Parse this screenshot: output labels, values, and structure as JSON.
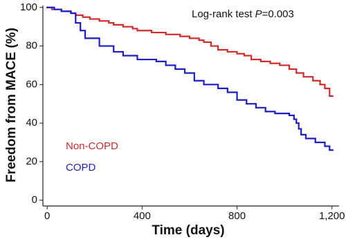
{
  "chart_data": {
    "type": "line",
    "drawstyle": "steps-post",
    "xlabel": "Time (days)",
    "ylabel": "Freedom from MACE (%)",
    "annotation": [
      "Log-rank test",
      "P",
      "=0.003"
    ],
    "xlim": [
      -18,
      1230
    ],
    "ylim": [
      -3,
      101
    ],
    "xticks": [
      0,
      400,
      800,
      {
        "value": 1200,
        "label": "1,200"
      }
    ],
    "yticks": [
      0,
      20,
      40,
      60,
      80,
      100
    ],
    "grid": false,
    "series": [
      {
        "name": "Non-COPD",
        "color": "#d42a2a",
        "x": [
          0,
          20,
          60,
          100,
          120,
          150,
          180,
          220,
          260,
          280,
          320,
          360,
          380,
          440,
          500,
          560,
          600,
          640,
          660,
          690,
          720,
          760,
          800,
          830,
          860,
          900,
          940,
          980,
          1020,
          1050,
          1080,
          1120,
          1150,
          1170,
          1190,
          1200
        ],
        "values": [
          100,
          99,
          98,
          97,
          96,
          95,
          94,
          93,
          92,
          91,
          90,
          89,
          88,
          87,
          86,
          85,
          84,
          83,
          82,
          80,
          78,
          77,
          76,
          75,
          73,
          72,
          71,
          70,
          68,
          66,
          64,
          62,
          60,
          58,
          54,
          54
        ]
      },
      {
        "name": "COPD",
        "color": "#1c1cc8",
        "x": [
          0,
          30,
          60,
          100,
          120,
          140,
          160,
          220,
          280,
          320,
          380,
          460,
          500,
          540,
          580,
          620,
          660,
          720,
          760,
          800,
          840,
          880,
          920,
          960,
          1020,
          1040,
          1050,
          1060,
          1070,
          1090,
          1130,
          1170,
          1190,
          1200
        ],
        "values": [
          100,
          99,
          98,
          97,
          92,
          88,
          84,
          80,
          77,
          75,
          73,
          72,
          70,
          68,
          66,
          62,
          60,
          58,
          56,
          52,
          50,
          48,
          46,
          45,
          44,
          42,
          40,
          37,
          34,
          32,
          30,
          28,
          26,
          26
        ]
      }
    ]
  }
}
